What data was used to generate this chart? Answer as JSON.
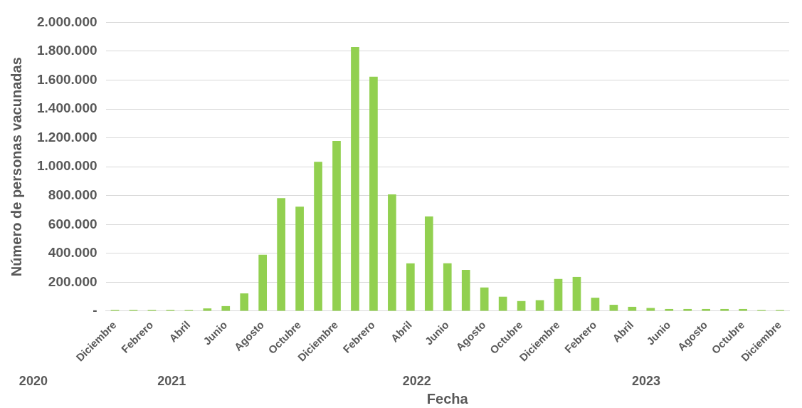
{
  "chart_data": {
    "type": "bar",
    "xlabel": "Fecha",
    "ylabel": "Número de personas vacunadas",
    "categories": [
      "Diciembre",
      null,
      "Febrero",
      null,
      "Abril",
      null,
      "Junio",
      null,
      "Agosto",
      null,
      "Octubre",
      null,
      "Diciembre",
      null,
      "Febrero",
      null,
      "Abril",
      null,
      "Junio",
      null,
      "Agosto",
      null,
      "Octubre",
      null,
      "Diciembre",
      null,
      "Febrero",
      null,
      "Abril",
      null,
      "Junio",
      null,
      "Agosto",
      null,
      "Octubre",
      null,
      "Diciembre"
    ],
    "values": [
      8000,
      8000,
      8000,
      8000,
      8000,
      19000,
      35000,
      123000,
      391000,
      783000,
      724000,
      1034000,
      1178000,
      1829000,
      1623000,
      809000,
      331000,
      656000,
      331000,
      286000,
      164000,
      100000,
      70000,
      76000,
      223000,
      237000,
      93000,
      44000,
      30000,
      22000,
      15000,
      15000,
      15000,
      15000,
      15000,
      8000,
      8000
    ],
    "color": "#92d050",
    "ylim": [
      0,
      2000000
    ],
    "yticks": [
      {
        "value": 0,
        "label": "-"
      },
      {
        "value": 200000,
        "label": "200.000"
      },
      {
        "value": 400000,
        "label": "400.000"
      },
      {
        "value": 600000,
        "label": "600.000"
      },
      {
        "value": 800000,
        "label": "800.000"
      },
      {
        "value": 1000000,
        "label": "1.000.000"
      },
      {
        "value": 1200000,
        "label": "1.200.000"
      },
      {
        "value": 1400000,
        "label": "1.400.000"
      },
      {
        "value": 1600000,
        "label": "1.600.000"
      },
      {
        "value": 1800000,
        "label": "1.800.000"
      },
      {
        "value": 2000000,
        "label": "2.000.000"
      }
    ],
    "grid": "y",
    "legend": false,
    "annotations": [
      "2020",
      "2021",
      "2022",
      "2023"
    ]
  }
}
